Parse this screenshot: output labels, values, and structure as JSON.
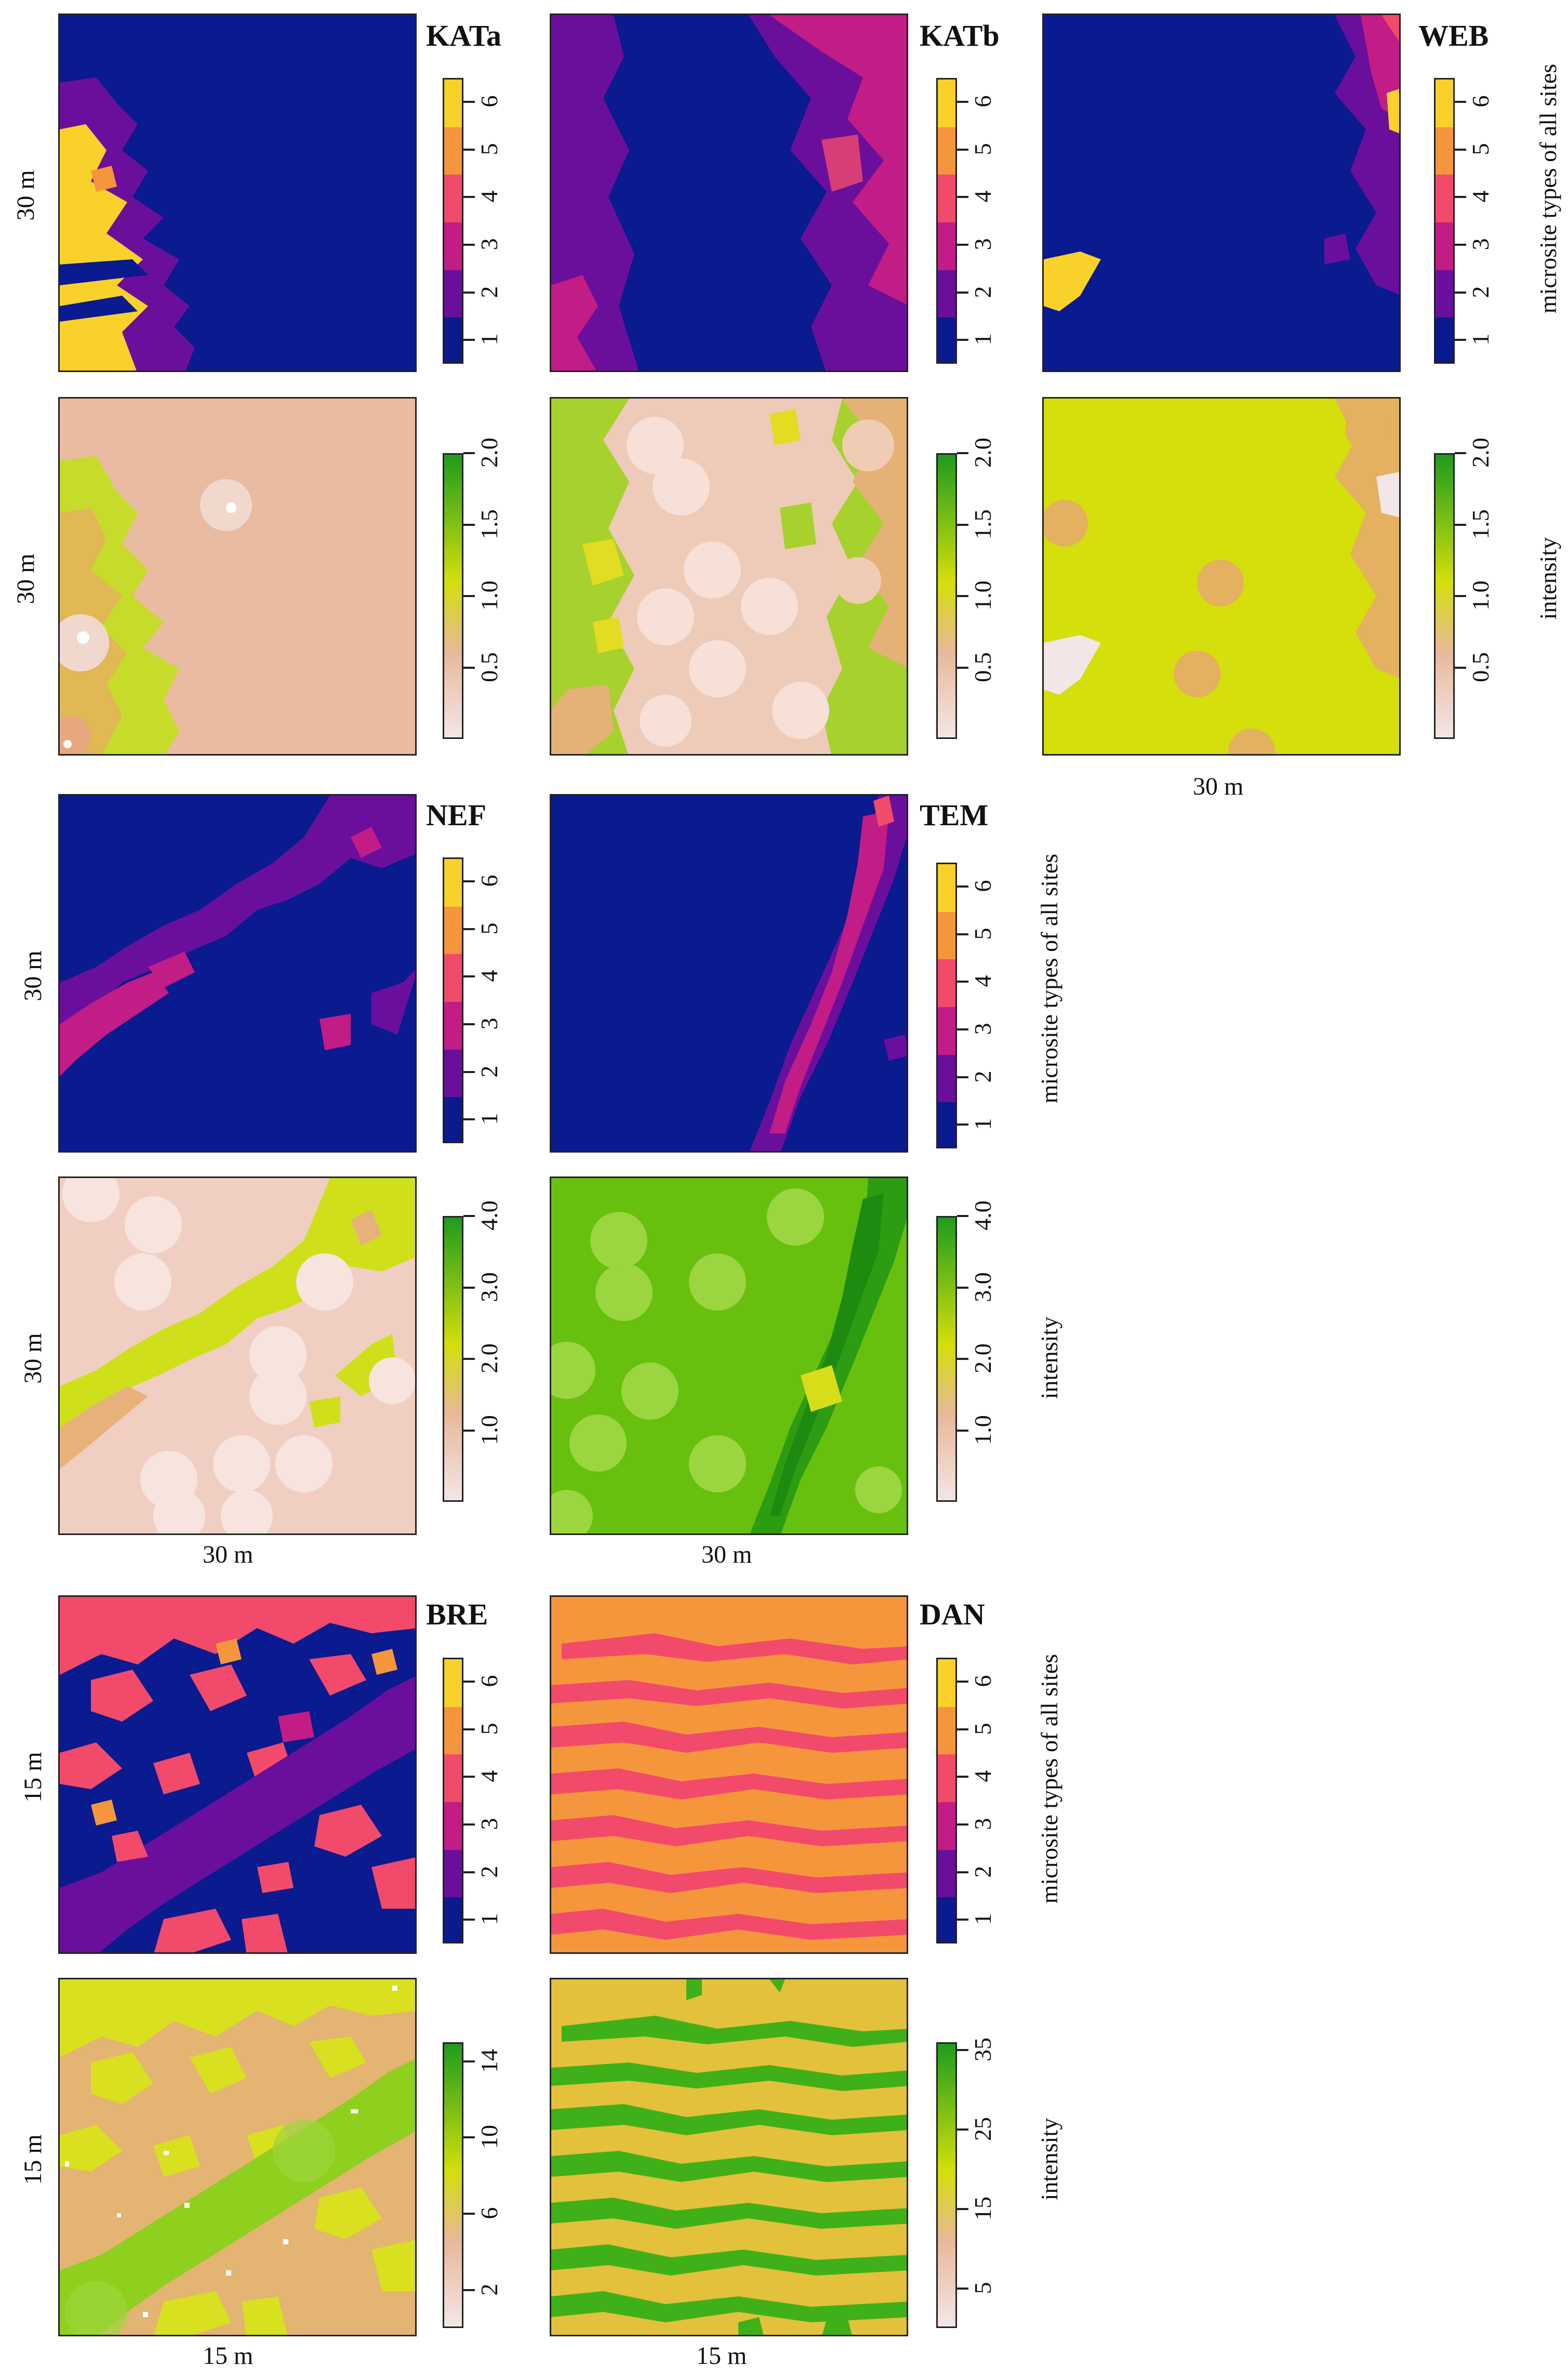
{
  "colors": {
    "type_1": "#0a1a8f",
    "type_2": "#6a0f9c",
    "type_3": "#c21c86",
    "type_4": "#f24a6b",
    "type_5": "#f5953c",
    "type_6": "#f8d22a",
    "intensity_low": "#f3e6e6",
    "intensity_mid_low": "#e8b89b",
    "intensity_mid": "#d4df0b",
    "intensity_high": "#1e9b1e"
  },
  "legend_titles": {
    "types": "microsite types of all sites",
    "intensity": "intensity"
  },
  "chart_data": [
    {
      "type": "heatmap",
      "site": "KATa",
      "ylabel": "30 m",
      "variable": "microsite type",
      "colorbar_ticks": [
        "1",
        "2",
        "3",
        "4",
        "5",
        "6"
      ]
    },
    {
      "type": "heatmap",
      "site": "KATb",
      "variable": "microsite type",
      "colorbar_ticks": [
        "1",
        "2",
        "3",
        "4",
        "5",
        "6"
      ]
    },
    {
      "type": "heatmap",
      "site": "WEB",
      "variable": "microsite type",
      "colorbar_ticks": [
        "1",
        "2",
        "3",
        "4",
        "5",
        "6"
      ]
    },
    {
      "type": "heatmap",
      "site": "KATa",
      "ylabel": "30 m",
      "variable": "intensity",
      "colorbar_ticks": [
        "0.5",
        "1.0",
        "1.5",
        "2.0"
      ],
      "colorbar_range": [
        0,
        2
      ]
    },
    {
      "type": "heatmap",
      "site": "KATb",
      "variable": "intensity",
      "colorbar_ticks": [
        "0.5",
        "1.0",
        "1.5",
        "2.0"
      ],
      "colorbar_range": [
        0,
        2
      ]
    },
    {
      "type": "heatmap",
      "site": "WEB",
      "xlabel": "30 m",
      "variable": "intensity",
      "colorbar_ticks": [
        "0.5",
        "1.0",
        "1.5",
        "2.0"
      ],
      "colorbar_range": [
        0,
        2
      ]
    },
    {
      "type": "heatmap",
      "site": "NEF",
      "ylabel": "30 m",
      "variable": "microsite type",
      "colorbar_ticks": [
        "1",
        "2",
        "3",
        "4",
        "5",
        "6"
      ]
    },
    {
      "type": "heatmap",
      "site": "TEM",
      "variable": "microsite type",
      "colorbar_ticks": [
        "1",
        "2",
        "3",
        "4",
        "5",
        "6"
      ]
    },
    {
      "type": "heatmap",
      "site": "NEF",
      "ylabel": "30 m",
      "xlabel": "30 m",
      "variable": "intensity",
      "colorbar_ticks": [
        "1.0",
        "2.0",
        "3.0",
        "4.0"
      ],
      "colorbar_range": [
        0,
        4
      ]
    },
    {
      "type": "heatmap",
      "site": "TEM",
      "xlabel": "30 m",
      "variable": "intensity",
      "colorbar_ticks": [
        "1.0",
        "2.0",
        "3.0",
        "4.0"
      ],
      "colorbar_range": [
        0,
        4
      ]
    },
    {
      "type": "heatmap",
      "site": "BRE",
      "ylabel": "15 m",
      "variable": "microsite type",
      "colorbar_ticks": [
        "1",
        "2",
        "3",
        "4",
        "5",
        "6"
      ]
    },
    {
      "type": "heatmap",
      "site": "DAN",
      "variable": "microsite type",
      "colorbar_ticks": [
        "1",
        "2",
        "3",
        "4",
        "5",
        "6"
      ]
    },
    {
      "type": "heatmap",
      "site": "BRE",
      "ylabel": "15 m",
      "xlabel": "15 m",
      "variable": "intensity",
      "colorbar_ticks": [
        "2",
        "6",
        "10",
        "14"
      ],
      "colorbar_range": [
        0,
        15
      ]
    },
    {
      "type": "heatmap",
      "site": "DAN",
      "xlabel": "15 m",
      "variable": "intensity",
      "colorbar_ticks": [
        "5",
        "15",
        "25",
        "35"
      ],
      "colorbar_range": [
        0,
        36
      ]
    }
  ],
  "labels": {
    "kata": "KATa",
    "katb": "KATb",
    "web": "WEB",
    "nef": "NEF",
    "tem": "TEM",
    "bre": "BRE",
    "dan": "DAN",
    "m30": "30 m",
    "m15": "15 m"
  }
}
